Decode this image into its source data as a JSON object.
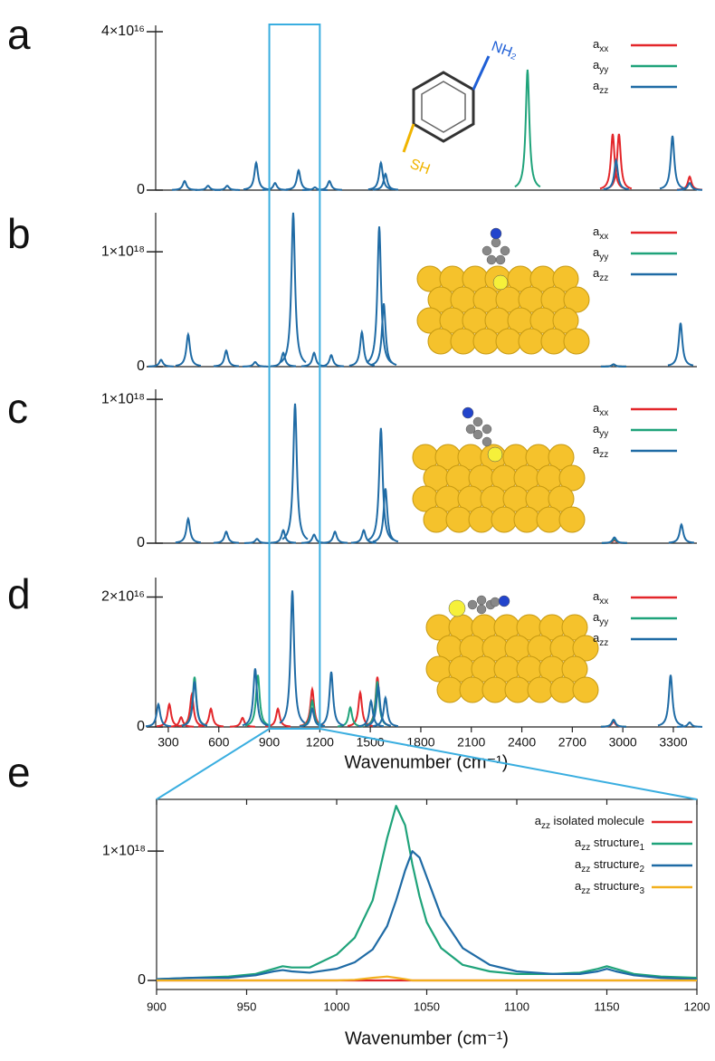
{
  "chart_data": [
    {
      "type": "spectrum",
      "panel_label": "a",
      "xlim": [
        225,
        3440
      ],
      "ylim": [
        0,
        4.16e+16
      ],
      "yticks": [
        0,
        {
          "value": 4e+16,
          "label": "4×10¹⁶"
        }
      ],
      "legend": "upper right",
      "annotations": [
        "NH₂",
        "SH"
      ],
      "series": [
        {
          "name": "axx",
          "color": "#e3262a",
          "x": [
            2940,
            2977,
            3397
          ],
          "values": [
            1.42e+16,
            1.42e+16,
            3400000000000000.0
          ]
        },
        {
          "name": "ayy",
          "color": "#1fa37a",
          "x": [
            2434
          ],
          "values": [
            3.04e+16
          ]
        },
        {
          "name": "azz",
          "color": "#1f6ba5",
          "x": [
            397,
            536,
            650,
            822,
            934,
            1074,
            1171,
            1257,
            1563,
            1590,
            2960,
            3295,
            3397
          ],
          "values": [
            2300000000000000.0,
            1100000000000000.0,
            1100000000000000.0,
            6900000000000000.0,
            1800000000000000.0,
            5000000000000000.0,
            700000000000000.0,
            2300000000000000.0,
            6900000000000000.0,
            4100000000000000.0,
            7500000000000000.0,
            1.37e+16,
            1800000000000000.0
          ]
        }
      ]
    },
    {
      "type": "spectrum",
      "panel_label": "b",
      "xlim": [
        225,
        3440
      ],
      "ylim": [
        0,
        1.34e+18
      ],
      "yticks": [
        0,
        {
          "value": 1e+18,
          "label": "1×10¹⁸"
        }
      ],
      "legend": "upper right",
      "series": [
        {
          "name": "axx",
          "color": "#e3262a",
          "x": [
            2945
          ],
          "values": [
            2e+16
          ]
        },
        {
          "name": "ayy",
          "color": "#1fa37a",
          "x": [
            2945
          ],
          "values": [
            2e+16
          ]
        },
        {
          "name": "azz",
          "color": "#1f6ba5",
          "x": [
            257,
            418,
            644,
            816,
            983,
            1042,
            1166,
            1268,
            1450,
            1553,
            1580,
            2945,
            3343
          ],
          "values": [
            6e+16,
            2.8e+17,
            1.4e+17,
            4e+16,
            1.2e+17,
            1.34e+18,
            1.2e+17,
            1e+17,
            3e+17,
            1.22e+18,
            5.5e+17,
            2e+16,
            3.8e+17
          ]
        }
      ]
    },
    {
      "type": "spectrum",
      "panel_label": "c",
      "xlim": [
        225,
        3440
      ],
      "ylim": [
        0,
        1.07e+18
      ],
      "yticks": [
        0,
        {
          "value": 1e+18,
          "label": "1×10¹⁸"
        }
      ],
      "legend": "upper right",
      "series": [
        {
          "name": "axx",
          "color": "#e3262a",
          "x": [
            2950
          ],
          "values": [
            2e+16
          ]
        },
        {
          "name": "ayy",
          "color": "#1fa37a",
          "x": [
            2950
          ],
          "values": [
            3e+16
          ]
        },
        {
          "name": "azz",
          "color": "#1f6ba5",
          "x": [
            418,
            644,
            827,
            983,
            1053,
            1166,
            1290,
            1461,
            1563,
            1590,
            2950,
            3348
          ],
          "values": [
            1.7e+17,
            8e+16,
            3e+16,
            9e+16,
            9.7e+17,
            6e+16,
            8e+16,
            9e+16,
            8e+17,
            3.8e+17,
            4e+16,
            1.3e+17
          ]
        }
      ]
    },
    {
      "type": "spectrum",
      "panel_label": "d",
      "xlim": [
        225,
        3440
      ],
      "ylim": [
        0,
        2.3e+16
      ],
      "yticks": [
        0,
        {
          "value": 2e+16,
          "label": "2×10¹⁶"
        }
      ],
      "legend": "upper right",
      "xticks": [
        300,
        600,
        900,
        1200,
        1500,
        1800,
        2100,
        2400,
        2700,
        3000,
        3300
      ],
      "xlabel": "Wavenumber (cm⁻¹)",
      "series": [
        {
          "name": "axx",
          "color": "#e3262a",
          "x": [
            306,
            376,
            440,
            553,
            741,
            951,
            1155,
            1440,
            1542,
            2945
          ],
          "values": [
            3500000000000000.0,
            1500000000000000.0,
            5000000000000000.0,
            2800000000000000.0,
            1400000000000000.0,
            2800000000000000.0,
            5800000000000000.0,
            5300000000000000.0,
            7700000000000000.0,
            800000000000000.0
          ]
        },
        {
          "name": "ayy",
          "color": "#1fa37a",
          "x": [
            456,
            832,
            1155,
            1381,
            1542,
            2945
          ],
          "values": [
            7700000000000000.0,
            8000000000000000.0,
            4000000000000000.0,
            3000000000000000.0,
            7000000000000000.0,
            1100000000000000.0
          ]
        },
        {
          "name": "azz",
          "color": "#1f6ba5",
          "x": [
            241,
            456,
            816,
            1037,
            1155,
            1268,
            1504,
            1547,
            1590,
            2945,
            3284,
            3397
          ],
          "values": [
            3500000000000000.0,
            7000000000000000.0,
            9000000000000000.0,
            2.1e+16,
            2800000000000000.0,
            8500000000000000.0,
            4000000000000000.0,
            6300000000000000.0,
            4500000000000000.0,
            1100000000000000.0,
            8000000000000000.0,
            700000000000000.0
          ]
        }
      ]
    },
    {
      "type": "line",
      "panel_label": "e",
      "xlim": [
        900,
        1200
      ],
      "ylim": [
        -7e+16,
        1.4e+18
      ],
      "yticks": [
        0,
        {
          "value": 1e+18,
          "label": "1×10¹⁸"
        }
      ],
      "legend": "upper right",
      "xticks": [
        900,
        950,
        1000,
        1050,
        1100,
        1150,
        1200
      ],
      "xlabel": "Wavenumber (cm⁻¹)",
      "x": [
        900,
        920,
        940,
        955,
        965,
        970,
        975,
        985,
        1000,
        1010,
        1020,
        1028,
        1033,
        1038,
        1042,
        1046,
        1050,
        1058,
        1070,
        1085,
        1100,
        1120,
        1135,
        1145,
        1150,
        1155,
        1165,
        1180,
        1200
      ],
      "series": [
        {
          "name": "azz isolated molecule",
          "color": "#e3262a",
          "values": [
            0,
            0,
            0,
            0,
            0,
            0,
            0,
            0,
            0,
            0,
            0,
            0,
            0,
            0,
            0,
            0,
            0,
            0,
            0,
            0,
            0,
            0,
            0,
            0,
            0,
            0,
            0,
            0,
            0
          ]
        },
        {
          "name": "azz structure1",
          "color": "#1fa37a",
          "values": [
            1e+16,
            2e+16,
            3e+16,
            5e+16,
            9e+16,
            1.1e+17,
            1e+17,
            1e+17,
            2e+17,
            3.3e+17,
            6.2e+17,
            1.1e+18,
            1.35e+18,
            1.2e+18,
            9e+17,
            6.5e+17,
            4.5e+17,
            2.5e+17,
            1.2e+17,
            7e+16,
            5e+16,
            5e+16,
            6e+16,
            9e+16,
            1.1e+17,
            9e+16,
            5e+16,
            3e+16,
            2e+16
          ]
        },
        {
          "name": "azz structure2",
          "color": "#1f6ba5",
          "values": [
            1e+16,
            2e+16,
            2e+16,
            4e+16,
            7e+16,
            8e+16,
            7e+16,
            6e+16,
            9e+16,
            1.4e+17,
            2.4e+17,
            4.2e+17,
            6.2e+17,
            8.5e+17,
            1e+18,
            9.5e+17,
            8e+17,
            5e+17,
            2.5e+17,
            1.2e+17,
            7e+16,
            5e+16,
            5e+16,
            7e+16,
            9e+16,
            7e+16,
            4e+16,
            2e+16,
            1e+16
          ]
        },
        {
          "name": "azz structure3",
          "color": "#f2b01e",
          "values": [
            0,
            0,
            0,
            0,
            0,
            0,
            0,
            0,
            0,
            5000000000000000.0,
            2e+16,
            3e+16,
            2e+16,
            1e+16,
            0,
            0,
            0,
            0,
            0,
            0,
            0,
            0,
            0,
            0,
            0,
            0,
            0,
            0,
            0
          ]
        }
      ]
    }
  ]
}
